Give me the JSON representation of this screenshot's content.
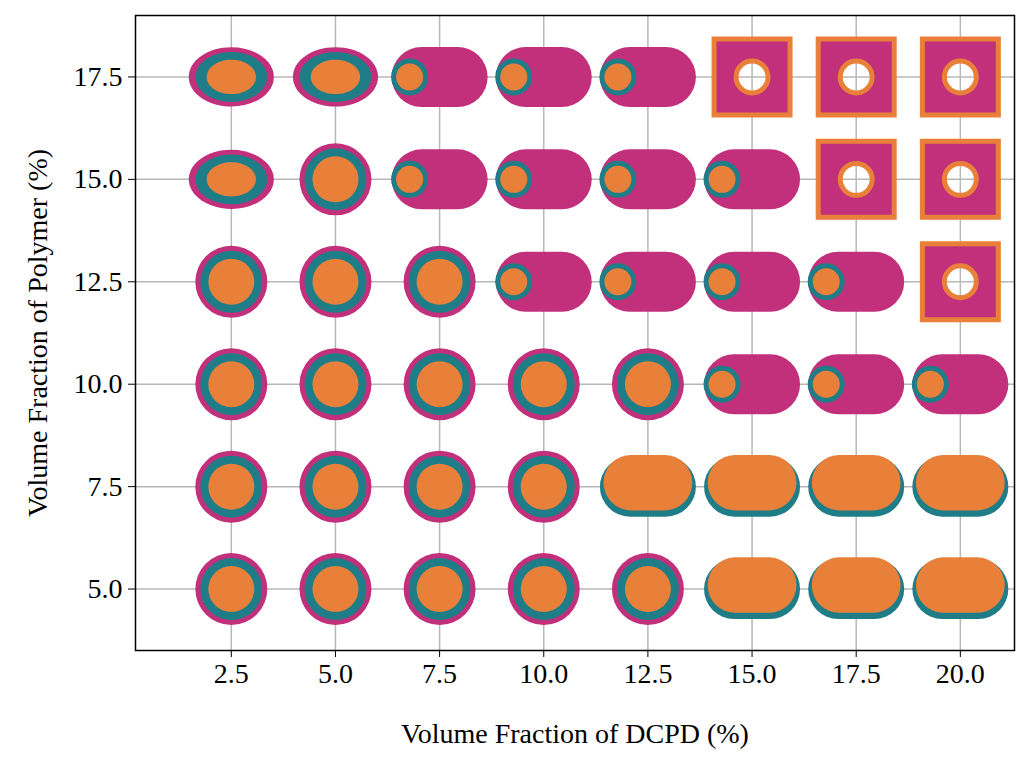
{
  "chart_data": {
    "type": "scatter",
    "x_label": "Volume Fraction of DCPD (%)",
    "y_label": "Volume Fraction of Polymer (%)",
    "xlim": [
      0.2,
      21.3
    ],
    "ylim": [
      3.5,
      19
    ],
    "xticks": [
      2.5,
      {
        "value": 5,
        "label": "5.0"
      },
      7.5,
      {
        "value": 10,
        "label": "10.0"
      },
      12.5,
      {
        "value": 15,
        "label": "15.0"
      },
      17.5,
      {
        "value": 20,
        "label": "20.0"
      }
    ],
    "yticks": [
      {
        "value": 5,
        "label": "5.0"
      },
      7.5,
      {
        "value": 10,
        "label": "10.0"
      },
      12.5,
      {
        "value": 15,
        "label": "15.0"
      },
      17.5
    ],
    "grid": true,
    "series": [
      {
        "marker": "sphere",
        "x": [
          2.5,
          5,
          7.5,
          10,
          12.5,
          2.5,
          5,
          7.5,
          10,
          2.5,
          5,
          7.5,
          10,
          12.5,
          2.5,
          5,
          7.5,
          5
        ],
        "values": [
          5,
          5,
          5,
          5,
          5,
          7.5,
          7.5,
          7.5,
          7.5,
          10,
          10,
          10,
          10,
          10,
          12.5,
          12.5,
          12.5,
          15
        ]
      },
      {
        "marker": "ellipsoid",
        "x": [
          2.5,
          2.5,
          5
        ],
        "values": [
          15,
          17.5,
          17.5
        ]
      },
      {
        "marker": "rod",
        "x": [
          15,
          17.5,
          20,
          10,
          12.5,
          15,
          17.5,
          7.5,
          10,
          12.5,
          15,
          7.5,
          10,
          12.5
        ],
        "values": [
          10,
          10,
          10,
          12.5,
          12.5,
          12.5,
          12.5,
          15,
          15,
          15,
          15,
          17.5,
          17.5,
          17.5
        ]
      },
      {
        "marker": "patchy_rod",
        "x": [
          15,
          17.5,
          20,
          12.5,
          15,
          17.5,
          20
        ],
        "values": [
          5,
          5,
          5,
          7.5,
          7.5,
          7.5,
          7.5
        ]
      },
      {
        "marker": "perforated_sheet",
        "x": [
          20,
          17.5,
          20,
          15,
          17.5,
          20
        ],
        "values": [
          12.5,
          15,
          15,
          17.5,
          17.5,
          17.5
        ]
      }
    ]
  }
}
